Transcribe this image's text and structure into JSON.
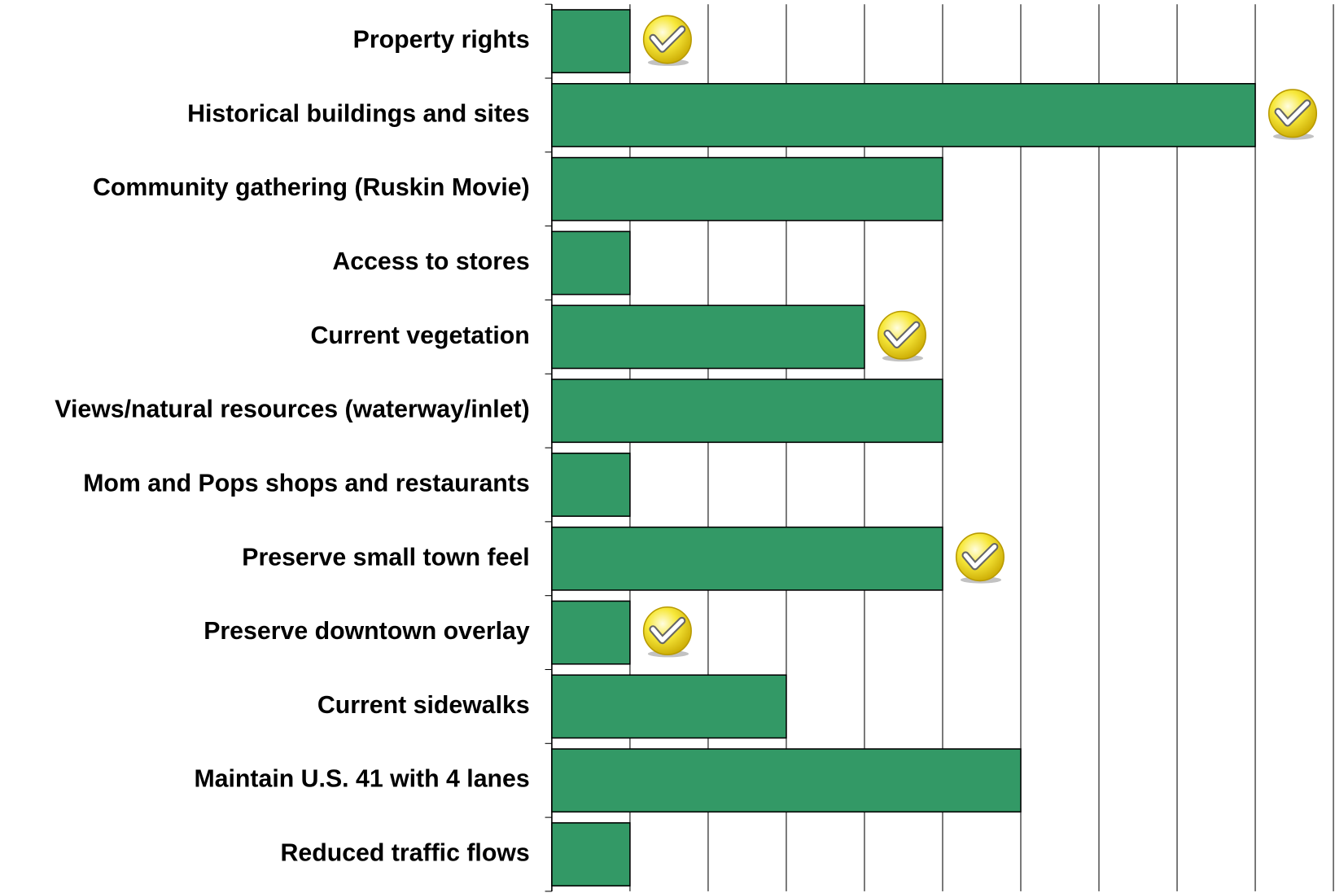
{
  "chart_data": {
    "type": "barh",
    "categories": [
      "Property rights",
      "Historical buildings and sites",
      "Community gathering (Ruskin Movie)",
      "Access to stores",
      "Current vegetation",
      "Views/natural resources (waterway/inlet)",
      "Mom and Pops shops and restaurants",
      "Preserve small town feel",
      "Preserve downtown overlay",
      "Current sidewalks",
      "Maintain U.S. 41 with  4 lanes",
      "Reduced traffic flows"
    ],
    "values": [
      1,
      9,
      5,
      1,
      4,
      5,
      1,
      5,
      1,
      3,
      6,
      1
    ],
    "checked": [
      true,
      true,
      false,
      false,
      true,
      false,
      false,
      true,
      true,
      false,
      false,
      false
    ],
    "color": "#339966",
    "xlim": [
      0,
      10
    ],
    "xticks": [
      0,
      1,
      2,
      3,
      4,
      5,
      6,
      7,
      8,
      9,
      10
    ],
    "grid": true
  }
}
